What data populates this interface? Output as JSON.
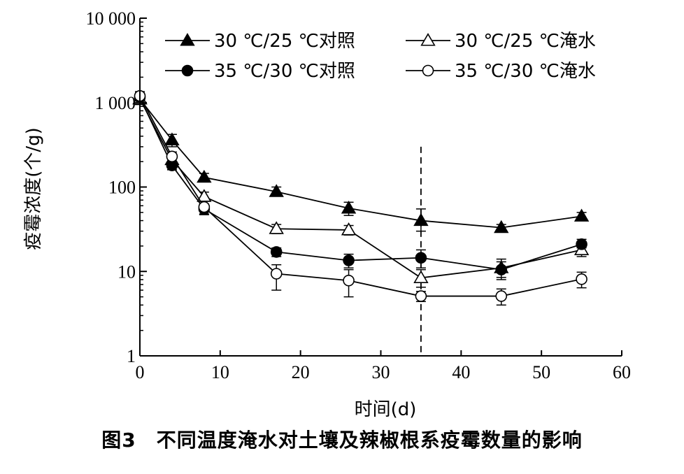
{
  "caption": "图3　不同温度淹水对土壤及辣椒根系疫霉数量的影响",
  "chart_data": {
    "type": "line",
    "xlabel": "时间(d)",
    "ylabel": "疫霉浓度(个/g)",
    "xlim": [
      0,
      60
    ],
    "ylim": [
      1,
      10000
    ],
    "yscale": "log",
    "x_ticks": [
      0,
      10,
      20,
      30,
      40,
      50,
      60
    ],
    "x_tick_labels": [
      "0",
      "10",
      "20",
      "30",
      "40",
      "50",
      "60"
    ],
    "y_ticks": [
      1,
      10,
      100,
      1000,
      10000
    ],
    "y_tick_labels": [
      "1",
      "10",
      "100",
      "1 000",
      "10 000"
    ],
    "grid": false,
    "legend_position": "top",
    "reference_line": {
      "x": 35,
      "style": "dashed"
    },
    "series": [
      {
        "name": "30 ℃/25 ℃对照",
        "marker": "triangle",
        "fill": "filled",
        "x": [
          0,
          4,
          8,
          17,
          26,
          35,
          45,
          55
        ],
        "y": [
          1100,
          360,
          130,
          88,
          56,
          40,
          33,
          45
        ],
        "err_low": [
          950,
          300,
          115,
          78,
          46,
          30,
          31,
          41
        ],
        "err_high": [
          1250,
          420,
          145,
          100,
          66,
          55,
          36,
          50
        ]
      },
      {
        "name": "30 ℃/25 ℃淹水",
        "marker": "triangle",
        "fill": "open",
        "x": [
          0,
          4,
          8,
          17,
          26,
          35,
          45,
          55
        ],
        "y": [
          1100,
          210,
          77,
          32,
          31,
          8.4,
          11,
          18
        ],
        "err_low": [
          950,
          180,
          68,
          28,
          27,
          6.5,
          8.5,
          15
        ],
        "err_high": [
          1250,
          240,
          87,
          36,
          35,
          10.5,
          13,
          21
        ]
      },
      {
        "name": "35 ℃/30 ℃对照",
        "marker": "circle",
        "fill": "filled",
        "x": [
          0,
          4,
          8,
          17,
          26,
          35,
          45,
          55
        ],
        "y": [
          1150,
          180,
          55,
          17,
          13.5,
          14.5,
          10.5,
          21
        ],
        "err_low": [
          1000,
          160,
          47,
          15,
          11,
          11,
          8,
          19
        ],
        "err_high": [
          1300,
          200,
          63,
          19,
          16,
          18,
          14,
          24
        ]
      },
      {
        "name": "35 ℃/30 ℃淹水",
        "marker": "circle",
        "fill": "open",
        "x": [
          0,
          4,
          8,
          17,
          26,
          35,
          45,
          55
        ],
        "y": [
          1200,
          230,
          58,
          9.4,
          7.8,
          5.1,
          5.1,
          8.1
        ],
        "err_low": [
          1050,
          200,
          48,
          6,
          5,
          4.4,
          4,
          6.4
        ],
        "err_high": [
          1350,
          260,
          68,
          12,
          10.5,
          5.8,
          6.2,
          9.8
        ]
      }
    ]
  }
}
